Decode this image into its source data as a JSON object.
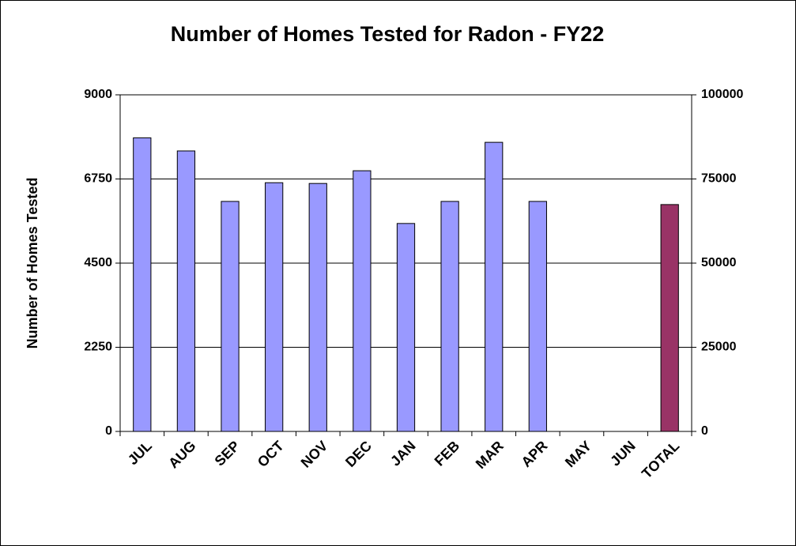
{
  "chart_data": {
    "type": "bar",
    "title": "Number of Homes Tested for Radon - FY22",
    "y_label": "Number of Homes Tested",
    "categories": [
      "JUL",
      "AUG",
      "SEP",
      "OCT",
      "NOV",
      "DEC",
      "JAN",
      "FEB",
      "MAR",
      "APR",
      "MAY",
      "JUN",
      "TOTAL"
    ],
    "series": [
      {
        "color": "#9999ff",
        "axis": "y",
        "values": [
          7850,
          7500,
          6150,
          6650,
          6630,
          6970,
          5560,
          6150,
          7730,
          6150,
          null,
          null,
          null
        ]
      },
      {
        "color": "#993366",
        "axis": "y2",
        "values": [
          null,
          null,
          null,
          null,
          null,
          null,
          null,
          null,
          null,
          null,
          null,
          null,
          67400
        ]
      }
    ],
    "ylim": [
      0,
      9000
    ],
    "yticks": [
      0,
      2250,
      4500,
      6750,
      9000
    ],
    "y2lim": [
      0,
      100000
    ],
    "y2ticks": [
      0,
      25000,
      50000,
      75000,
      100000
    ],
    "grid": true
  }
}
